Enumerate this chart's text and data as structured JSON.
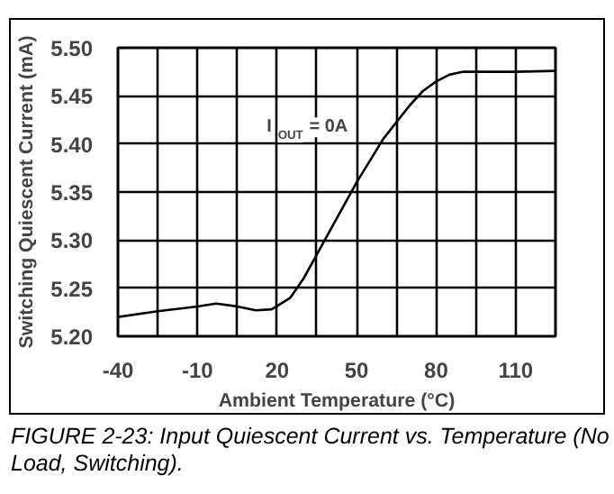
{
  "chart_data": {
    "type": "line",
    "xlabel": "Ambient Temperature (°C)",
    "ylabel": "Switching Quiescent Current (mA)",
    "x": [
      -40,
      -25,
      -10,
      -3,
      5,
      12,
      18,
      25,
      30,
      35,
      40,
      50,
      60,
      70,
      75,
      80,
      85,
      90,
      100,
      110,
      125
    ],
    "series": [
      {
        "color": "#000000",
        "values": [
          5.22,
          5.226,
          5.231,
          5.234,
          5.231,
          5.227,
          5.228,
          5.24,
          5.26,
          5.285,
          5.31,
          5.36,
          5.405,
          5.44,
          5.455,
          5.465,
          5.472,
          5.475,
          5.475,
          5.475,
          5.476
        ]
      }
    ],
    "xlim": [
      -40,
      125
    ],
    "ylim": [
      5.2,
      5.5
    ],
    "xticks": [
      -40,
      {
        "value": -25,
        "label": null
      },
      -10,
      {
        "value": 5,
        "label": null
      },
      20,
      {
        "value": 35,
        "label": null
      },
      50,
      {
        "value": 65,
        "label": null
      },
      80,
      {
        "value": 95,
        "label": null
      },
      110,
      {
        "value": 125,
        "label": null
      }
    ],
    "yticks": [
      {
        "value": 5.2,
        "label": "5.20"
      },
      {
        "value": 5.25,
        "label": "5.25"
      },
      {
        "value": 5.3,
        "label": "5.30"
      },
      {
        "value": 5.35,
        "label": "5.35"
      },
      {
        "value": 5.4,
        "label": "5.40"
      },
      {
        "value": 5.45,
        "label": "5.45"
      },
      {
        "value": 5.5,
        "label": "5.50"
      }
    ],
    "grid": true,
    "marker": "none",
    "line_style": "solid",
    "annotations": [
      "I$_{OUT}$ = 0A",
      "FIGURE 2-23:        Input Quiescent Current vs. Temperature (No Load, Switching)."
    ]
  }
}
